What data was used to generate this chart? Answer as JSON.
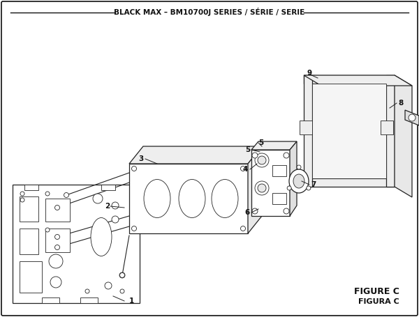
{
  "title": "BLACK MAX – BM10700J SERIES / SÉRIE / SERIE",
  "figure_label_1": "FIGURE C",
  "figure_label_2": "FIGURA C",
  "bg_color": "#ffffff",
  "title_fontsize": 7.5,
  "label_fontsize": 7.5,
  "fig_label_fontsize": 9
}
